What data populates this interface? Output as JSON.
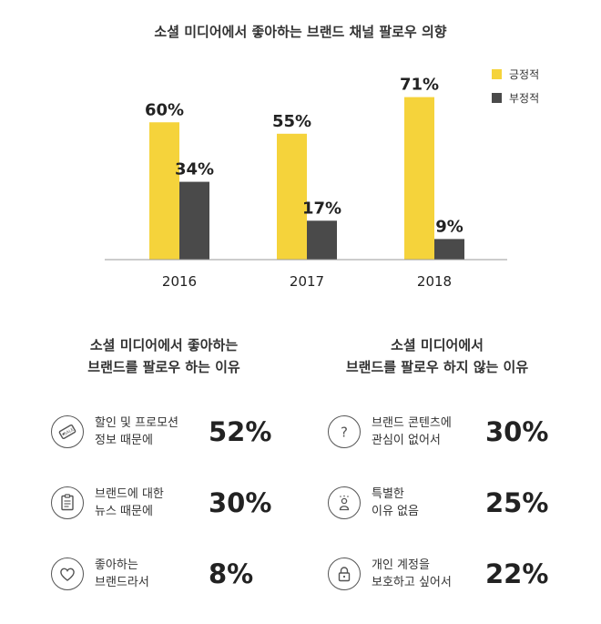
{
  "chart_data": {
    "type": "bar",
    "title": "소셜 미디어에서 좋아하는 브랜드 채널 팔로우 의향",
    "categories": [
      "2016",
      "2017",
      "2018"
    ],
    "series": [
      {
        "name": "긍정적",
        "values": [
          60,
          55,
          71
        ],
        "labels": [
          "60%",
          "55%",
          "71%"
        ],
        "color": "#f5d33b"
      },
      {
        "name": "부정적",
        "values": [
          34,
          17,
          9
        ],
        "labels": [
          "34%",
          "17%",
          "9%"
        ],
        "color": "#4a4a4a"
      }
    ],
    "ylim": [
      0,
      80
    ],
    "grid": false,
    "legend": "top-right"
  },
  "follow_reasons": {
    "title_lines": [
      "소셜 미디어에서 좋아하는",
      "브랜드를 팔로우 하는 이유"
    ],
    "items": [
      {
        "icon": "sale-tag-icon",
        "lines": [
          "할인 및 프로모션",
          "정보 때문에"
        ],
        "percent": "52%"
      },
      {
        "icon": "news-document-icon",
        "lines": [
          "브랜드에 대한",
          "뉴스 때문에"
        ],
        "percent": "30%"
      },
      {
        "icon": "heart-icon",
        "lines": [
          "좋아하는",
          "브랜드라서"
        ],
        "percent": "8%"
      }
    ]
  },
  "not_follow_reasons": {
    "title_lines": [
      "소셜 미디어에서",
      "브랜드를 팔로우 하지 않는 이유"
    ],
    "items": [
      {
        "icon": "question-mark-icon",
        "lines": [
          "브랜드 콘텐츠에",
          "관심이 없어서"
        ],
        "percent": "30%"
      },
      {
        "icon": "person-icon",
        "lines": [
          "특별한",
          "이유 없음"
        ],
        "percent": "25%"
      },
      {
        "icon": "padlock-icon",
        "lines": [
          "개인 계정을",
          "보호하고 싶어서"
        ],
        "percent": "22%"
      }
    ]
  }
}
